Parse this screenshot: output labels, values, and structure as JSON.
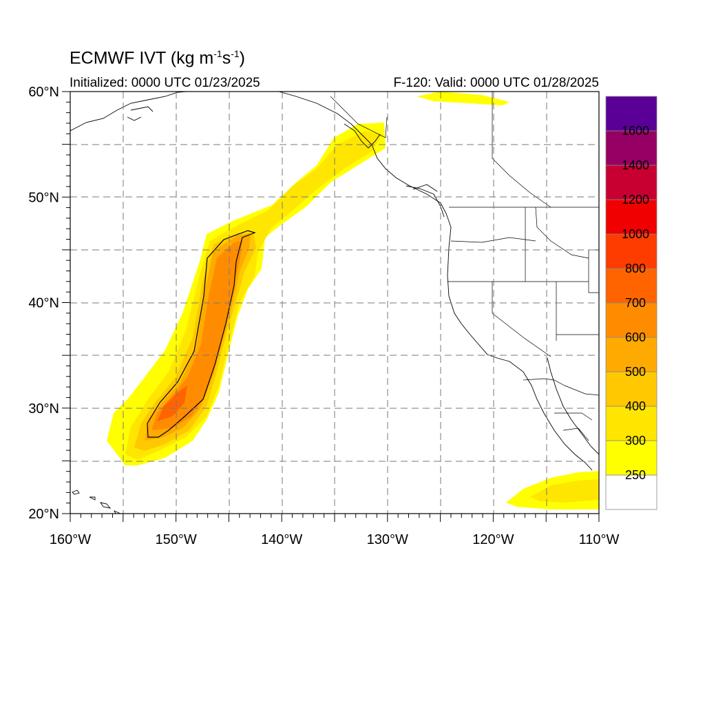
{
  "title": {
    "main": "ECMWF IVT (kg m",
    "sup1": "-1",
    "mid": "s",
    "sup2": "-1",
    "end": ")"
  },
  "subtitle": {
    "left": "Initialized: 0000 UTC 01/23/2025",
    "right": "F-120: Valid: 0000 UTC 01/28/2025"
  },
  "map": {
    "lon_range": [
      -160,
      -110
    ],
    "lat_range": [
      20,
      60
    ],
    "lon_ticks": [
      {
        "value": -160,
        "label": "160°W"
      },
      {
        "value": -150,
        "label": "150°W"
      },
      {
        "value": -140,
        "label": "140°W"
      },
      {
        "value": -130,
        "label": "130°W"
      },
      {
        "value": -120,
        "label": "120°W"
      },
      {
        "value": -110,
        "label": "110°W"
      }
    ],
    "lat_ticks": [
      {
        "value": 20,
        "label": "20°N"
      },
      {
        "value": 30,
        "label": "30°N"
      },
      {
        "value": 40,
        "label": "40°N"
      },
      {
        "value": 50,
        "label": "50°N"
      },
      {
        "value": 60,
        "label": "60°N"
      }
    ],
    "gridlines": "dashed every 5°",
    "contour_line_value": 500
  },
  "colorbar": {
    "levels": [
      {
        "label": "",
        "color": "#ffffff"
      },
      {
        "label": "250",
        "color": "#ffff00"
      },
      {
        "label": "300",
        "color": "#ffe600"
      },
      {
        "label": "400",
        "color": "#ffc800"
      },
      {
        "label": "500",
        "color": "#ffaa00"
      },
      {
        "label": "600",
        "color": "#ff8c00"
      },
      {
        "label": "700",
        "color": "#ff6400"
      },
      {
        "label": "800",
        "color": "#ff3c00"
      },
      {
        "label": "1000",
        "color": "#f00000"
      },
      {
        "label": "1200",
        "color": "#c80032"
      },
      {
        "label": "1400",
        "color": "#960064"
      },
      {
        "label": "1600",
        "color": "#5a0096"
      }
    ]
  }
}
